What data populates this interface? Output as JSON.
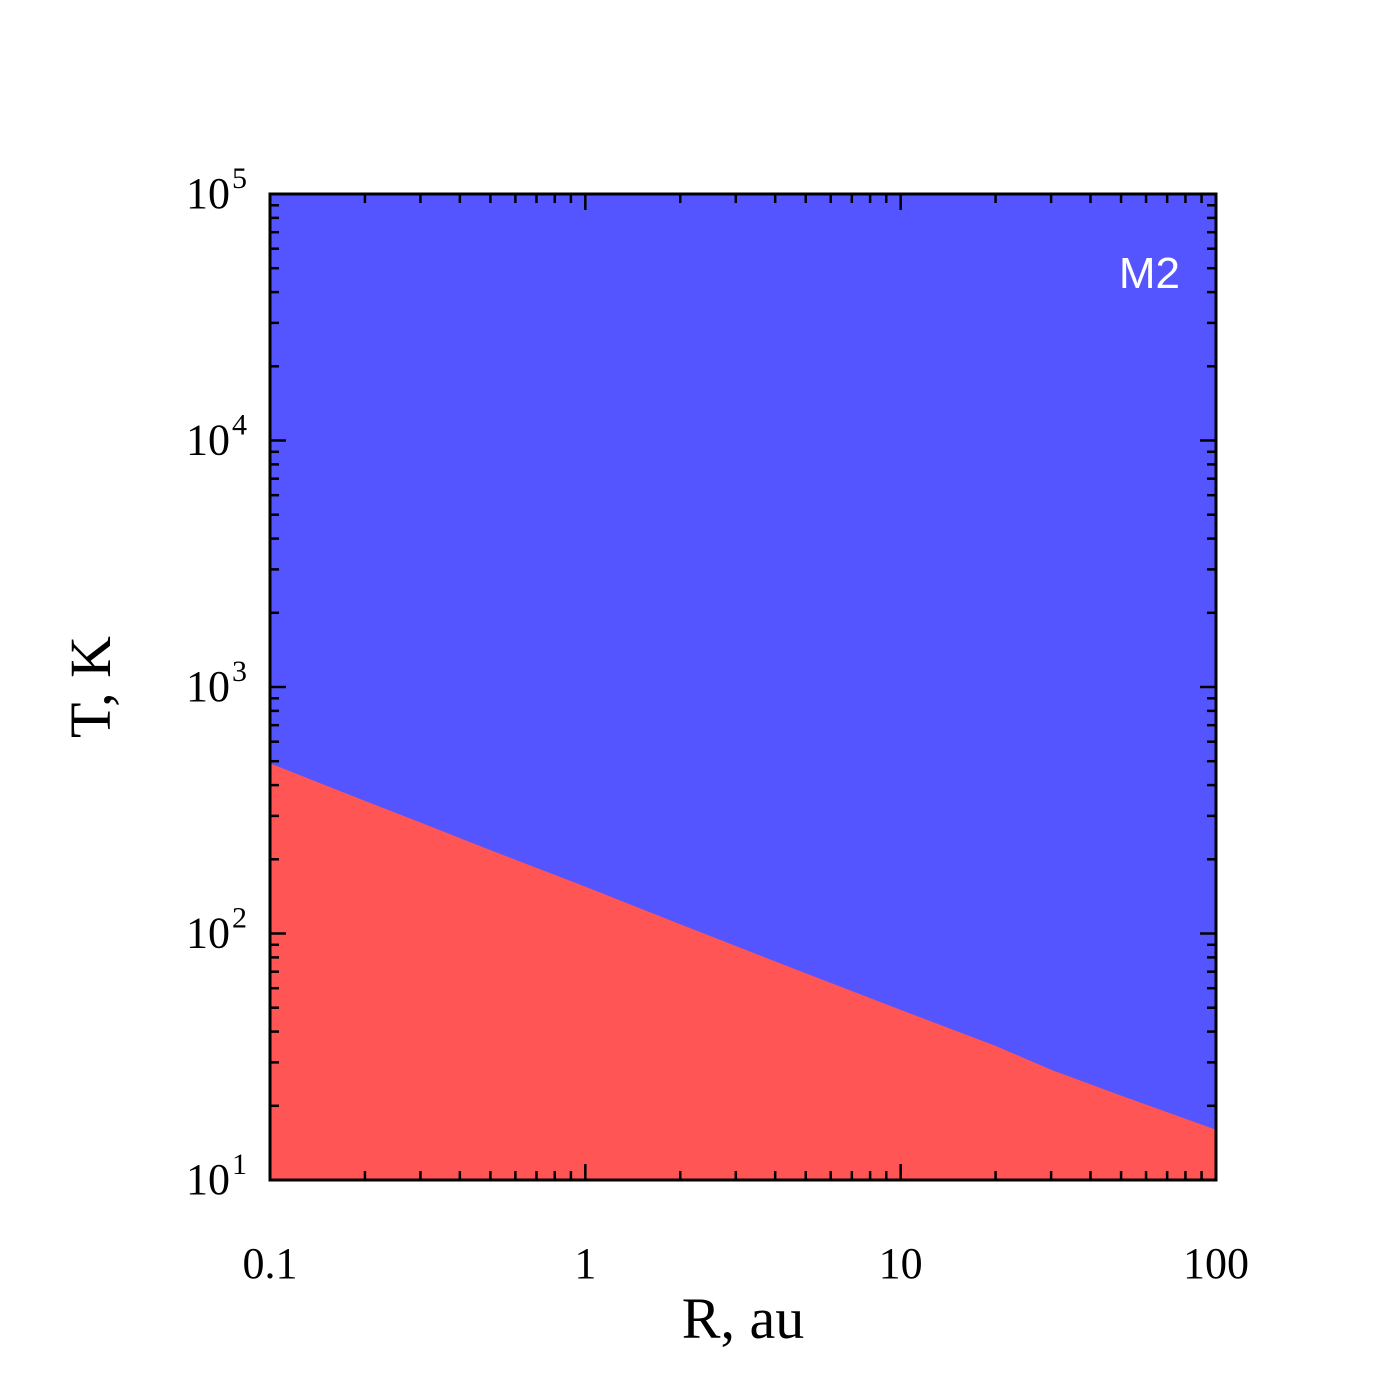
{
  "chart_data": {
    "type": "area",
    "title": "",
    "xlabel": "R, au",
    "ylabel": "T, K",
    "xscale": "log",
    "yscale": "log",
    "xlim": [
      0.1,
      100
    ],
    "ylim": [
      10,
      100000
    ],
    "x_ticks": [
      {
        "value": 0.1,
        "label": "0.1"
      },
      {
        "value": 1,
        "label": "1"
      },
      {
        "value": 10,
        "label": "10"
      },
      {
        "value": 100,
        "label": "100"
      }
    ],
    "y_ticks": [
      {
        "value": 10,
        "base": "10",
        "exp": "1"
      },
      {
        "value": 100,
        "base": "10",
        "exp": "2"
      },
      {
        "value": 1000,
        "base": "10",
        "exp": "3"
      },
      {
        "value": 10000,
        "base": "10",
        "exp": "4"
      },
      {
        "value": 100000,
        "base": "10",
        "exp": "5"
      }
    ],
    "boundary": {
      "x": [
        0.1,
        0.2,
        0.3,
        0.5,
        1,
        2,
        3,
        5,
        10,
        20,
        30,
        50,
        100
      ],
      "y": [
        490,
        345,
        282,
        218,
        155,
        109,
        89,
        69,
        49,
        35,
        28,
        22,
        16
      ]
    },
    "regions": [
      {
        "position": "below-boundary",
        "color": "#ff5555"
      },
      {
        "position": "above-boundary",
        "color": "#5555ff"
      }
    ],
    "annotation": {
      "text": "M2",
      "position": "top-right",
      "color": "#ffffff"
    },
    "grid": false,
    "legend": "none"
  }
}
